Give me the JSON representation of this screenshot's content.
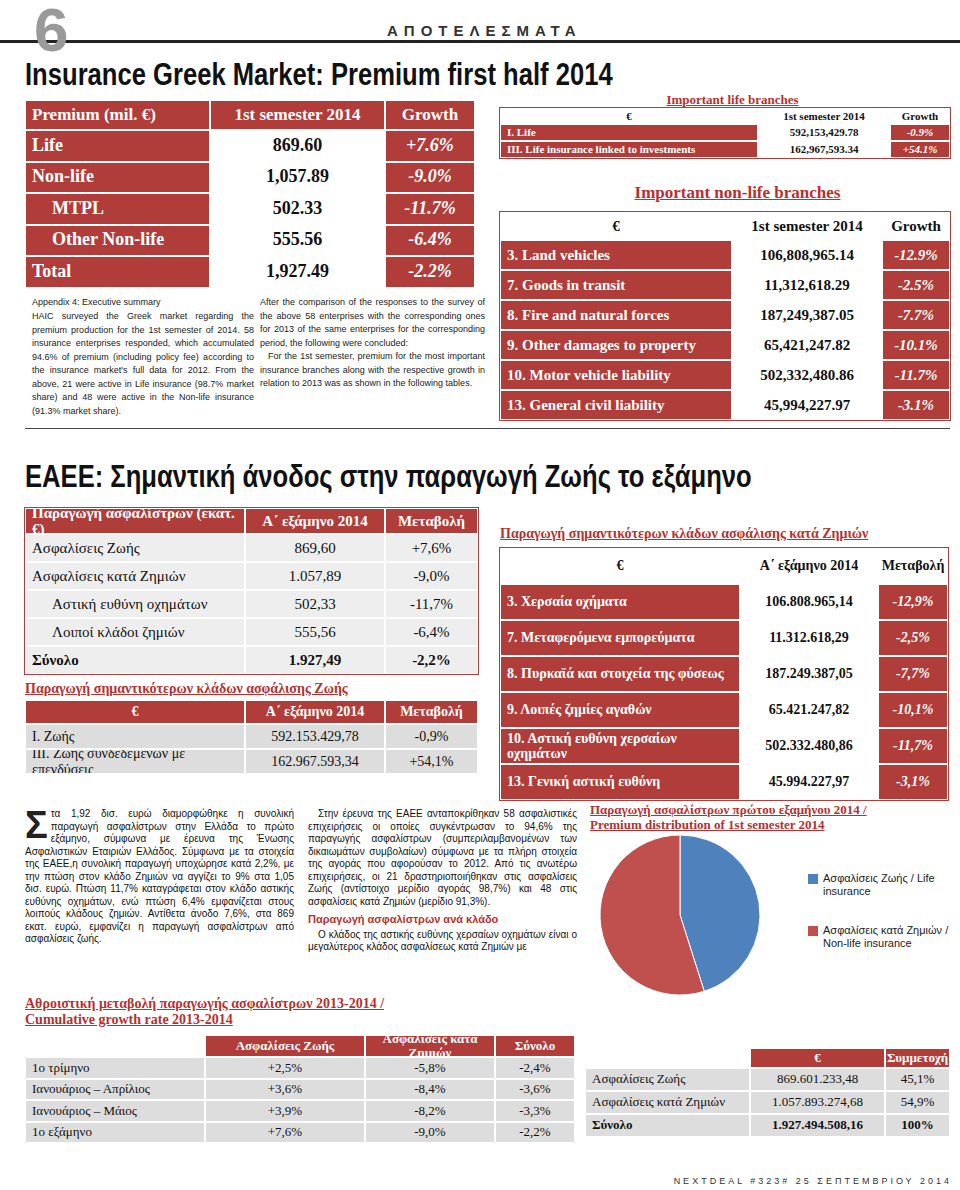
{
  "page_header": {
    "page_number": "6",
    "section": "ΑΠΟΤΕΛΕΣΜΑΤΑ"
  },
  "title": "Insurance Greek Market: Premium first half 2014",
  "summary_table": {
    "header": [
      "Premium (mil. €)",
      "1st semester 2014",
      "Growth"
    ],
    "rows": [
      [
        "Life",
        "869.60",
        "+7.6%"
      ],
      [
        "Non-life",
        "1,057.89",
        "-9.0%"
      ],
      [
        "MTPL",
        "502.33",
        "-11.7%"
      ],
      [
        "Other Non-life",
        "555.56",
        "-6.4%"
      ],
      [
        "Total",
        "1,927.49",
        "-2.2%"
      ]
    ]
  },
  "appendix": {
    "heading": "Appendix 4: Executive summary",
    "paragraphs": [
      "HAIC surveyed the Greek market regarding the premium production for the 1st semester of 2014. 58 insurance enterprises responded, which accumulated 94.6% of premium (including policy fee) according to the insurance market's full data for 2012. From the above, 21 were active in Life insurance (98.7% market share) and 48 were active in the Non-life insurance (91.3% market share).",
      "After the comparison of the responses to the survey of the above 58 enterprises with the corresponding ones for 2013 of the same enterprises for the corresponding period, the following were concluded:",
      "For the 1st semester, premium for the most important insurance branches along with the respective growth in relation to 2013 was as shown in the following tables."
    ]
  },
  "life_branches": {
    "title": "Important life branches",
    "header": [
      "€",
      "1st semester 2014",
      "Growth"
    ],
    "rows": [
      [
        "I. Life",
        "592,153,429.78",
        "-0.9%"
      ],
      [
        "III. Life insurance linked to investments",
        "162,967,593.34",
        "+54.1%"
      ]
    ]
  },
  "nonlife_branches": {
    "title": "Important non-life branches",
    "header": [
      "€",
      "1st semester 2014",
      "Growth"
    ],
    "rows": [
      [
        "3. Land vehicles",
        "106,808,965.14",
        "-12.9%"
      ],
      [
        "7. Goods in transit",
        "11,312,618.29",
        "-2.5%"
      ],
      [
        "8. Fire and natural forces",
        "187,249,387.05",
        "-7.7%"
      ],
      [
        "9. Other damages to property",
        "65,421,247.82",
        "-10.1%"
      ],
      [
        "10. Motor vehicle liability",
        "502,332,480.86",
        "-11.7%"
      ],
      [
        "13. General civil liability",
        "45,994,227.97",
        "-3.1%"
      ]
    ]
  },
  "headline": "ΕΑΕΕ: Σημαντική άνοδος στην παραγωγή Ζωής το εξάμηνο",
  "gr_summary_table": {
    "header": [
      "Παραγωγή ασφαλίστρων (εκατ. €)",
      "Α΄ εξάμηνο 2014",
      "Μεταβολή"
    ],
    "rows": [
      [
        "Ασφαλίσεις Ζωής",
        "869,60",
        "+7,6%"
      ],
      [
        "Ασφαλίσεις κατά Ζημιών",
        "1.057,89",
        "-9,0%"
      ],
      [
        "Αστική ευθύνη οχημάτων",
        "502,33",
        "-11,7%"
      ],
      [
        "Λοιποί κλάδοι ζημιών",
        "555,56",
        "-6,4%"
      ],
      [
        "Σύνολο",
        "1.927,49",
        "-2,2%"
      ]
    ]
  },
  "gr_life_branches": {
    "title": "Παραγωγή σημαντικότερων κλάδων ασφάλισης Ζωής",
    "header": [
      "€",
      "Α΄ εξάμηνο 2014",
      "Μεταβολή"
    ],
    "rows": [
      [
        "Ι. Ζωής",
        "592.153.429,78",
        "-0,9%"
      ],
      [
        "ΙΙΙ. Ζωής συνδεδεμένων με επενδύσεις",
        "162.967.593,34",
        "+54,1%"
      ]
    ]
  },
  "gr_nonlife_branches": {
    "title": "Παραγωγή σημαντικότερων κλάδων ασφάλισης κατά Ζημιών",
    "header": [
      "€",
      "Α΄ εξάμηνο 2014",
      "Μεταβολή"
    ],
    "rows": [
      [
        "3. Χερσαία οχήματα",
        "106.808.965,14",
        "-12,9%"
      ],
      [
        "7. Μεταφερόμενα εμπορεύματα",
        "11.312.618,29",
        "-2,5%"
      ],
      [
        "8. Πυρκαϊά και στοιχεία της φύσεως",
        "187.249.387,05",
        "-7,7%"
      ],
      [
        "9. Λοιπές ζημίες αγαθών",
        "65.421.247,82",
        "-10,1%"
      ],
      [
        "10. Αστική ευθύνη χερσαίων οχημάτων",
        "502.332.480,86",
        "-11,7%"
      ],
      [
        "13. Γενική αστική ευθύνη",
        "45.994.227,97",
        "-3,1%"
      ]
    ]
  },
  "article": {
    "paragraphs": [
      "Στα 1,92 δισ. ευρώ διαμορφώθηκε η συνολική παραγωγή ασφαλίστρων στην Ελλάδα το πρώτο εξάμηνο, σύμφωνα με έρευνα της Ένωσης Ασφαλιστικών Εταιριών Ελλάδος. Σύμφωνα με τα στοιχεία της ΕΑΕΕ,η συνολική παραγωγή υποχώρησε κατά 2,2%, με την πτώση στον κλάδο Ζημιών να αγγίζει το 9% στα 1,05 δισ. ευρώ. Πτώση 11,7% καταγράφεται στον κλάδο αστικής ευθύνης οχημάτων, ενώ πτώση 6,4% εμφανίζεται στους λοιπούς κλάδους ζημιών. Αντίθετα άνοδο 7,6%, στα 869 εκατ. ευρώ, εμφανίζει η παραγωγή ασφαλίστρων από ασφαλίσεις ζωής.",
      "Στην έρευνα της ΕΑΕΕ ανταποκρίθηκαν 58 ασφαλιστικές επιχειρήσεις οι οποίες συγκέντρωσαν το 94,6% της παραγωγής ασφαλίστρων (συμπεριλαμβανομένων των δικαιωμάτων συμβολαίων) σύμφωνα με τα πλήρη στοιχεία της αγοράς που αφορούσαν το 2012. Από τις ανωτέρω επιχειρήσεις, οι 21 δραστηριοποιήθηκαν στις ασφαλίσεις Ζωής (αντίστοιχο μερίδιο αγοράς 98,7%) και 48 στις ασφαλίσεις κατά Ζημιών (μερίδιο 91,3%)."
    ],
    "subheading": "Παραγωγή ασφαλίστρων ανά κλάδο",
    "closing": "Ο κλάδος της αστικής ευθύνης χερσαίων οχημάτων είναι ο μεγαλύτερος κλάδος ασφαλίσεως κατά Ζημιών με"
  },
  "chart_data": {
    "type": "pie",
    "title": "Παραγωγή ασφαλίστρων πρώτου εξαμήνου 2014 / Premium distribution of 1st semester 2014",
    "categories": [
      "Ασφαλίσεις Ζωής / Life insurance",
      "Ασφαλίσεις κατά Ζημιών / Non-life insurance"
    ],
    "values": [
      45.1,
      54.9
    ],
    "colors": [
      "#4f81bd",
      "#c0504d"
    ],
    "legend": "right"
  },
  "pie_table": {
    "header": [
      "€",
      "Συμμετοχή"
    ],
    "rows": [
      [
        "Ασφαλίσεις Ζωής",
        "869.601.233,48",
        "45,1%"
      ],
      [
        "Ασφαλίσεις κατά Ζημιών",
        "1.057.893.274,68",
        "54,9%"
      ],
      [
        "Σύνολο",
        "1.927.494.508,16",
        "100%"
      ]
    ]
  },
  "cumulative_table": {
    "title": [
      "Αθροιστική μεταβολή παραγωγής ασφαλίστρων 2013-2014 /",
      "Cumulative growth rate 2013-2014"
    ],
    "header": [
      "Ασφαλίσεις Ζωής",
      "Ασφαλίσεις κατά Ζημιών",
      "Σύνολο"
    ],
    "rows": [
      [
        "1ο τρίμηνο",
        "+2,5%",
        "-5,8%",
        "-2,4%"
      ],
      [
        "Ιανουάριος – Απρίλιος",
        "+3,6%",
        "-8,4%",
        "-3,6%"
      ],
      [
        "Ιανουάριος – Μάιος",
        "+3,9%",
        "-8,2%",
        "-3,3%"
      ],
      [
        "1ο εξάμηνο",
        "+7,6%",
        "-9,0%",
        "-2,2%"
      ]
    ]
  },
  "footer": "NEXTDEAL #323# 25 ΣΕΠΤΕΜΒΡΙΟΥ 2014"
}
